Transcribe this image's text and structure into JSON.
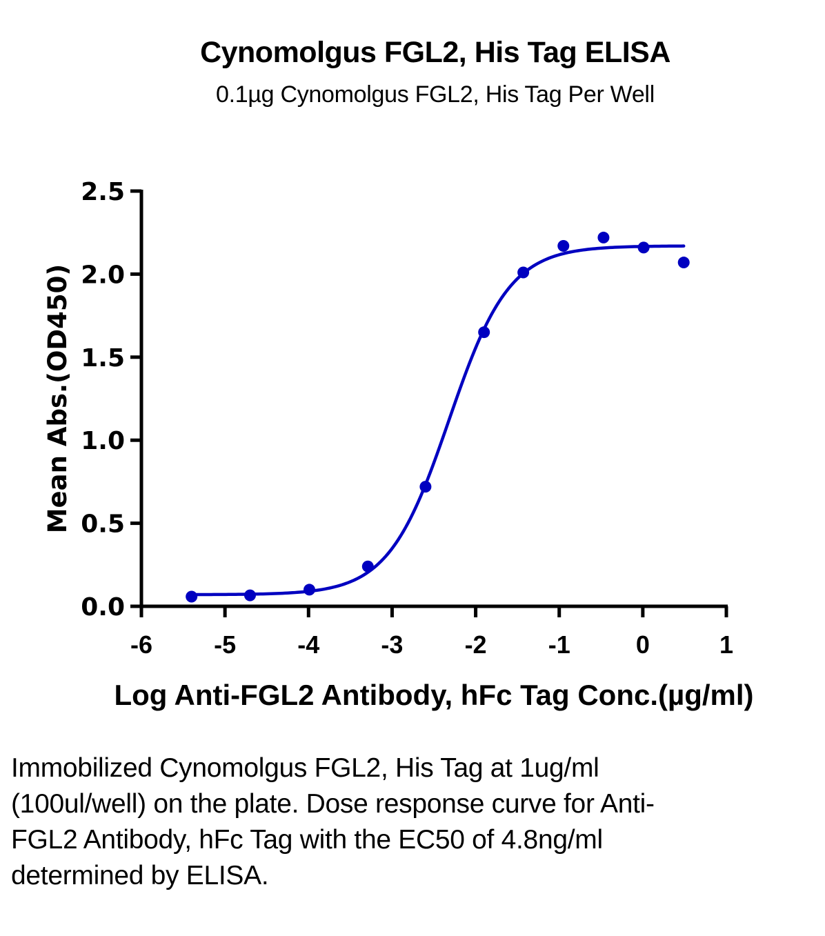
{
  "chart_data": {
    "type": "scatter",
    "title": "Cynomolgus FGL2, His Tag ELISA",
    "subtitle": "0.1µg Cynomolgus FGL2, His Tag Per Well",
    "xlabel": "Log Anti-FGL2 Antibody, hFc Tag Conc.(µg/ml)",
    "ylabel": "Mean Abs.(OD450)",
    "xlim": [
      -6,
      1
    ],
    "ylim": [
      0,
      2.5
    ],
    "xticks": [
      -6,
      -5,
      -4,
      -3,
      -2,
      -1,
      0,
      1
    ],
    "xtick_labels": [
      "-6",
      "-5",
      "-4",
      "-3",
      "-2",
      "-1",
      "0",
      "1"
    ],
    "yticks": [
      0,
      0.5,
      1.0,
      1.5,
      2.0,
      2.5
    ],
    "ytick_labels": [
      "0.0",
      "0.5",
      "1.0",
      "1.5",
      "2.0",
      "2.5"
    ],
    "grid": false,
    "legend": "none",
    "series": [
      {
        "name": "Anti-FGL2 Antibody, hFc Tag",
        "color": "#0000c0",
        "x": [
          -5.4,
          -4.7,
          -3.99,
          -3.29,
          -2.6,
          -1.9,
          -1.43,
          -0.95,
          -0.47,
          0.01,
          0.49
        ],
        "y": [
          0.058,
          0.066,
          0.1,
          0.24,
          0.72,
          1.65,
          2.01,
          2.17,
          2.22,
          2.16,
          2.07
        ]
      }
    ],
    "fit": {
      "model": "4PL",
      "bottom": 0.07,
      "top": 2.17,
      "log_ec50": -2.32,
      "hill_slope": 1.2,
      "x_range": [
        -5.4,
        0.49
      ],
      "color": "#0000c0"
    }
  },
  "caption": "Immobilized Cynomolgus FGL2, His Tag at 1ug/ml (100ul/well) on the plate. Dose response curve for Anti-FGL2 Antibody, hFc Tag with the EC50 of 4.8ng/ml determined by ELISA."
}
